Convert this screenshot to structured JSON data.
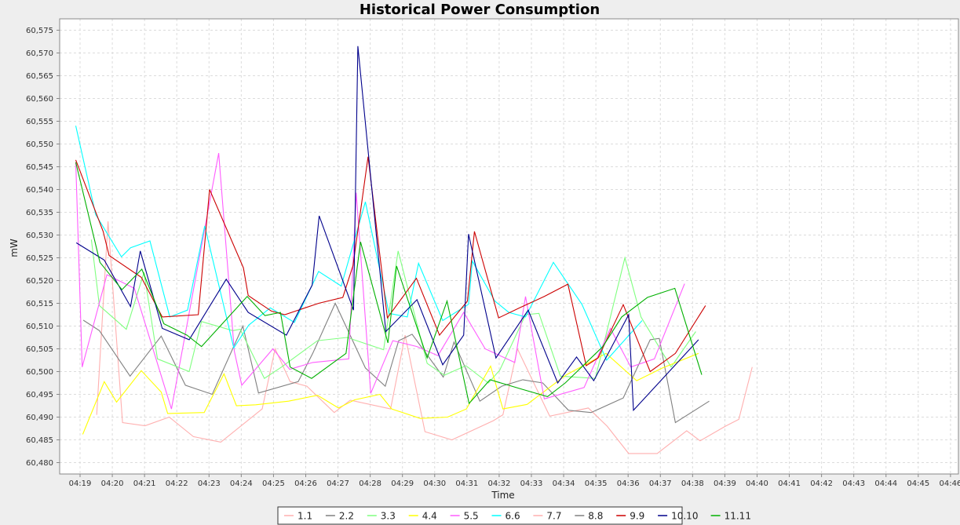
{
  "chart_data": {
    "type": "line",
    "title": "Historical Power Consumption",
    "xlabel": "Time",
    "ylabel": "mW",
    "ylim": [
      60.4775,
      60.5775
    ],
    "y_ticks": [
      "60,480",
      "60,485",
      "60,490",
      "60,495",
      "60,500",
      "60,505",
      "60,510",
      "60,515",
      "60,520",
      "60,525",
      "60,530",
      "60,535",
      "60,540",
      "60,545",
      "60,550",
      "60,555",
      "60,560",
      "60,565",
      "60,570",
      "60,575"
    ],
    "x_ticks": [
      "04:19",
      "04:20",
      "04:21",
      "04:22",
      "04:23",
      "04:24",
      "04:25",
      "04:26",
      "04:27",
      "04:28",
      "04:29",
      "04:30",
      "04:31",
      "04:32",
      "04:33",
      "04:34",
      "04:35",
      "04:36",
      "04:37",
      "04:38",
      "04:39",
      "04:40",
      "04:41",
      "04:42",
      "04:43",
      "04:44",
      "04:45",
      "04:46"
    ],
    "grid": true,
    "legend_position": "bottom",
    "series": [
      {
        "name": "1.1",
        "color": "#ffafaf",
        "points": [
          [
            1170,
            60.4905
          ],
          [
            1191,
            60.533
          ],
          [
            1218,
            60.4888
          ],
          [
            1260,
            60.4881
          ],
          [
            1305,
            60.49
          ],
          [
            1350,
            60.4857
          ],
          [
            1401,
            60.4845
          ],
          [
            1478,
            60.4918
          ],
          [
            1502,
            60.505
          ],
          [
            1530,
            60.4978
          ],
          [
            1561,
            60.4968
          ],
          [
            1612,
            60.491
          ],
          [
            1642,
            60.4937
          ],
          [
            1717,
            60.4918
          ],
          [
            1744,
            60.508
          ],
          [
            1781,
            60.4868
          ],
          [
            1831,
            60.485
          ],
          [
            1908,
            60.4892
          ],
          [
            1926,
            60.4905
          ],
          [
            1953,
            60.505
          ],
          [
            2013,
            60.4902
          ],
          [
            2085,
            60.492
          ],
          [
            2120,
            60.488
          ],
          [
            2160,
            60.482
          ],
          [
            2213,
            60.482
          ],
          [
            2268,
            60.487
          ],
          [
            2293,
            60.4848
          ],
          [
            2340,
            60.488
          ],
          [
            2365,
            60.4895
          ],
          [
            2390,
            60.501
          ]
        ]
      },
      {
        "name": "2.2",
        "color": "#808080",
        "points": [
          [
            1145,
            60.5113
          ],
          [
            1175,
            60.509
          ],
          [
            1232,
            60.499
          ],
          [
            1290,
            60.5078
          ],
          [
            1335,
            60.497
          ],
          [
            1385,
            60.495
          ],
          [
            1442,
            60.51
          ],
          [
            1471,
            60.4953
          ],
          [
            1545,
            60.4978
          ],
          [
            1572,
            60.504
          ],
          [
            1614,
            60.515
          ],
          [
            1670,
            60.5008
          ],
          [
            1707,
            60.4968
          ],
          [
            1732,
            60.5068
          ],
          [
            1757,
            60.5082
          ],
          [
            1815,
            60.4988
          ],
          [
            1835,
            60.5065
          ],
          [
            1883,
            60.4935
          ],
          [
            1924,
            60.4968
          ],
          [
            1963,
            60.4982
          ],
          [
            2000,
            60.4975
          ],
          [
            2048,
            60.4915
          ],
          [
            2090,
            60.491
          ],
          [
            2150,
            60.4942
          ],
          [
            2200,
            60.507
          ],
          [
            2217,
            60.5073
          ],
          [
            2247,
            60.4888
          ],
          [
            2310,
            60.4935
          ]
        ]
      },
      {
        "name": "3.3",
        "color": "#80ff80",
        "points": [
          [
            1160,
            60.529
          ],
          [
            1175,
            60.5145
          ],
          [
            1225,
            60.5093
          ],
          [
            1258,
            60.5218
          ],
          [
            1283,
            60.5028
          ],
          [
            1342,
            60.5
          ],
          [
            1365,
            60.511
          ],
          [
            1423,
            60.509
          ],
          [
            1437,
            60.5093
          ],
          [
            1482,
            60.4985
          ],
          [
            1514,
            60.501
          ],
          [
            1581,
            60.5068
          ],
          [
            1636,
            60.5075
          ],
          [
            1704,
            60.5048
          ],
          [
            1731,
            60.5265
          ],
          [
            1785,
            60.5018
          ],
          [
            1817,
            60.4992
          ],
          [
            1857,
            60.5013
          ],
          [
            1899,
            60.4975
          ],
          [
            1920,
            60.5003
          ],
          [
            1968,
            60.5125
          ],
          [
            1993,
            60.5128
          ],
          [
            2033,
            60.499
          ],
          [
            2098,
            60.4985
          ],
          [
            2153,
            60.525
          ],
          [
            2183,
            60.512
          ],
          [
            2239,
            60.501
          ],
          [
            2285,
            60.5088
          ]
        ]
      },
      {
        "name": "4.4",
        "color": "#ffff00",
        "points": [
          [
            1144,
            60.4862
          ],
          [
            1184,
            60.4978
          ],
          [
            1207,
            60.4933
          ],
          [
            1253,
            60.5002
          ],
          [
            1290,
            60.4955
          ],
          [
            1302,
            60.4908
          ],
          [
            1370,
            60.491
          ],
          [
            1407,
            60.4995
          ],
          [
            1430,
            60.4925
          ],
          [
            1466,
            60.4927
          ],
          [
            1527,
            60.4935
          ],
          [
            1581,
            60.4948
          ],
          [
            1620,
            60.492
          ],
          [
            1650,
            60.4938
          ],
          [
            1697,
            60.495
          ],
          [
            1719,
            60.4918
          ],
          [
            1772,
            60.4897
          ],
          [
            1823,
            60.49
          ],
          [
            1858,
            60.4918
          ],
          [
            1903,
            60.5012
          ],
          [
            1926,
            60.4918
          ],
          [
            1971,
            60.4928
          ],
          [
            2044,
            60.4993
          ],
          [
            2118,
            60.504
          ],
          [
            2175,
            60.498
          ],
          [
            2223,
            60.5008
          ],
          [
            2290,
            60.504
          ]
        ]
      },
      {
        "name": "5.5",
        "color": "#ff5cff",
        "points": [
          [
            1131,
            60.546
          ],
          [
            1143,
            60.501
          ],
          [
            1189,
            60.5213
          ],
          [
            1240,
            60.5183
          ],
          [
            1309,
            60.4918
          ],
          [
            1397,
            60.548
          ],
          [
            1426,
            60.5045
          ],
          [
            1440,
            60.497
          ],
          [
            1498,
            60.505
          ],
          [
            1529,
            60.5005
          ],
          [
            1572,
            60.502
          ],
          [
            1639,
            60.5028
          ],
          [
            1653,
            60.5393
          ],
          [
            1680,
            60.4952
          ],
          [
            1721,
            60.5068
          ],
          [
            1766,
            60.5055
          ],
          [
            1805,
            60.5035
          ],
          [
            1853,
            60.513
          ],
          [
            1893,
            60.505
          ],
          [
            1948,
            60.502
          ],
          [
            1968,
            60.5165
          ],
          [
            2003,
            60.494
          ],
          [
            2077,
            60.4965
          ],
          [
            2126,
            60.5095
          ],
          [
            2164,
            60.501
          ],
          [
            2208,
            60.5028
          ],
          [
            2264,
            60.5193
          ]
        ]
      },
      {
        "name": "6.6",
        "color": "#00ffff",
        "points": [
          [
            1131,
            60.554
          ],
          [
            1168,
            60.5345
          ],
          [
            1216,
            60.5252
          ],
          [
            1233,
            60.5272
          ],
          [
            1269,
            60.5287
          ],
          [
            1306,
            60.512
          ],
          [
            1339,
            60.5135
          ],
          [
            1371,
            60.532
          ],
          [
            1425,
            60.5052
          ],
          [
            1453,
            60.5102
          ],
          [
            1493,
            60.514
          ],
          [
            1538,
            60.5108
          ],
          [
            1583,
            60.522
          ],
          [
            1625,
            60.5188
          ],
          [
            1670,
            60.5373
          ],
          [
            1714,
            60.5128
          ],
          [
            1748,
            60.512
          ],
          [
            1769,
            60.5238
          ],
          [
            1814,
            60.5112
          ],
          [
            1862,
            60.5148
          ],
          [
            1869,
            60.5243
          ],
          [
            1911,
            60.5155
          ],
          [
            1937,
            60.513
          ],
          [
            1968,
            60.512
          ],
          [
            2020,
            60.524
          ],
          [
            2073,
            60.5148
          ],
          [
            2119,
            60.5025
          ],
          [
            2185,
            60.5112
          ]
        ]
      },
      {
        "name": "7.7",
        "color": "#ffafaf",
        "points": []
      },
      {
        "name": "8.8",
        "color": "#808080",
        "points": []
      },
      {
        "name": "9.9",
        "color": "#cc0000",
        "points": [
          [
            1131,
            60.5465
          ],
          [
            1182,
            60.5308
          ],
          [
            1193,
            60.5255
          ],
          [
            1253,
            60.5207
          ],
          [
            1292,
            60.512
          ],
          [
            1359,
            60.5125
          ],
          [
            1380,
            60.54
          ],
          [
            1443,
            60.5228
          ],
          [
            1452,
            60.5167
          ],
          [
            1495,
            60.5133
          ],
          [
            1520,
            60.5125
          ],
          [
            1583,
            60.515
          ],
          [
            1628,
            60.5163
          ],
          [
            1647,
            60.5233
          ],
          [
            1675,
            60.5472
          ],
          [
            1711,
            60.5118
          ],
          [
            1765,
            60.5205
          ],
          [
            1808,
            60.508
          ],
          [
            1860,
            60.5155
          ],
          [
            1873,
            60.5308
          ],
          [
            1918,
            60.5118
          ],
          [
            1957,
            60.514
          ],
          [
            2003,
            60.5165
          ],
          [
            2047,
            60.5192
          ],
          [
            2081,
            60.5013
          ],
          [
            2103,
            60.503
          ],
          [
            2150,
            60.5147
          ],
          [
            2200,
            60.5
          ],
          [
            2247,
            60.504
          ],
          [
            2303,
            60.5145
          ]
        ]
      },
      {
        "name": "10.10",
        "color": "#00008b",
        "points": [
          [
            1132,
            60.5283
          ],
          [
            1184,
            60.5245
          ],
          [
            1233,
            60.5143
          ],
          [
            1251,
            60.5265
          ],
          [
            1292,
            60.5095
          ],
          [
            1342,
            60.507
          ],
          [
            1411,
            60.5203
          ],
          [
            1452,
            60.513
          ],
          [
            1523,
            60.508
          ],
          [
            1571,
            60.519
          ],
          [
            1584,
            60.5342
          ],
          [
            1648,
            60.5135
          ],
          [
            1656,
            60.5715
          ],
          [
            1708,
            60.5088
          ],
          [
            1766,
            60.5158
          ],
          [
            1814,
            60.5015
          ],
          [
            1853,
            60.508
          ],
          [
            1862,
            60.5302
          ],
          [
            1913,
            60.503
          ],
          [
            1973,
            60.5135
          ],
          [
            2028,
            60.4975
          ],
          [
            2063,
            60.5032
          ],
          [
            2095,
            60.498
          ],
          [
            2160,
            60.5125
          ],
          [
            2169,
            60.4915
          ],
          [
            2290,
            60.507
          ]
        ]
      },
      {
        "name": "11.11",
        "color": "#00b000",
        "points": [
          [
            1131,
            60.546
          ],
          [
            1176,
            60.524
          ],
          [
            1217,
            60.518
          ],
          [
            1254,
            60.5225
          ],
          [
            1295,
            60.5105
          ],
          [
            1338,
            60.508
          ],
          [
            1365,
            60.5055
          ],
          [
            1450,
            60.5165
          ],
          [
            1483,
            60.5123
          ],
          [
            1512,
            60.513
          ],
          [
            1530,
            60.501
          ],
          [
            1570,
            60.4985
          ],
          [
            1634,
            60.504
          ],
          [
            1661,
            60.5285
          ],
          [
            1712,
            60.5063
          ],
          [
            1728,
            60.5232
          ],
          [
            1785,
            60.503
          ],
          [
            1822,
            60.5155
          ],
          [
            1863,
            60.493
          ],
          [
            1902,
            60.4982
          ],
          [
            1959,
            60.4962
          ],
          [
            2009,
            60.4945
          ],
          [
            2042,
            60.4975
          ],
          [
            2112,
            60.5055
          ],
          [
            2147,
            60.512
          ],
          [
            2195,
            60.5163
          ],
          [
            2246,
            60.5183
          ],
          [
            2296,
            60.4993
          ]
        ]
      }
    ]
  }
}
